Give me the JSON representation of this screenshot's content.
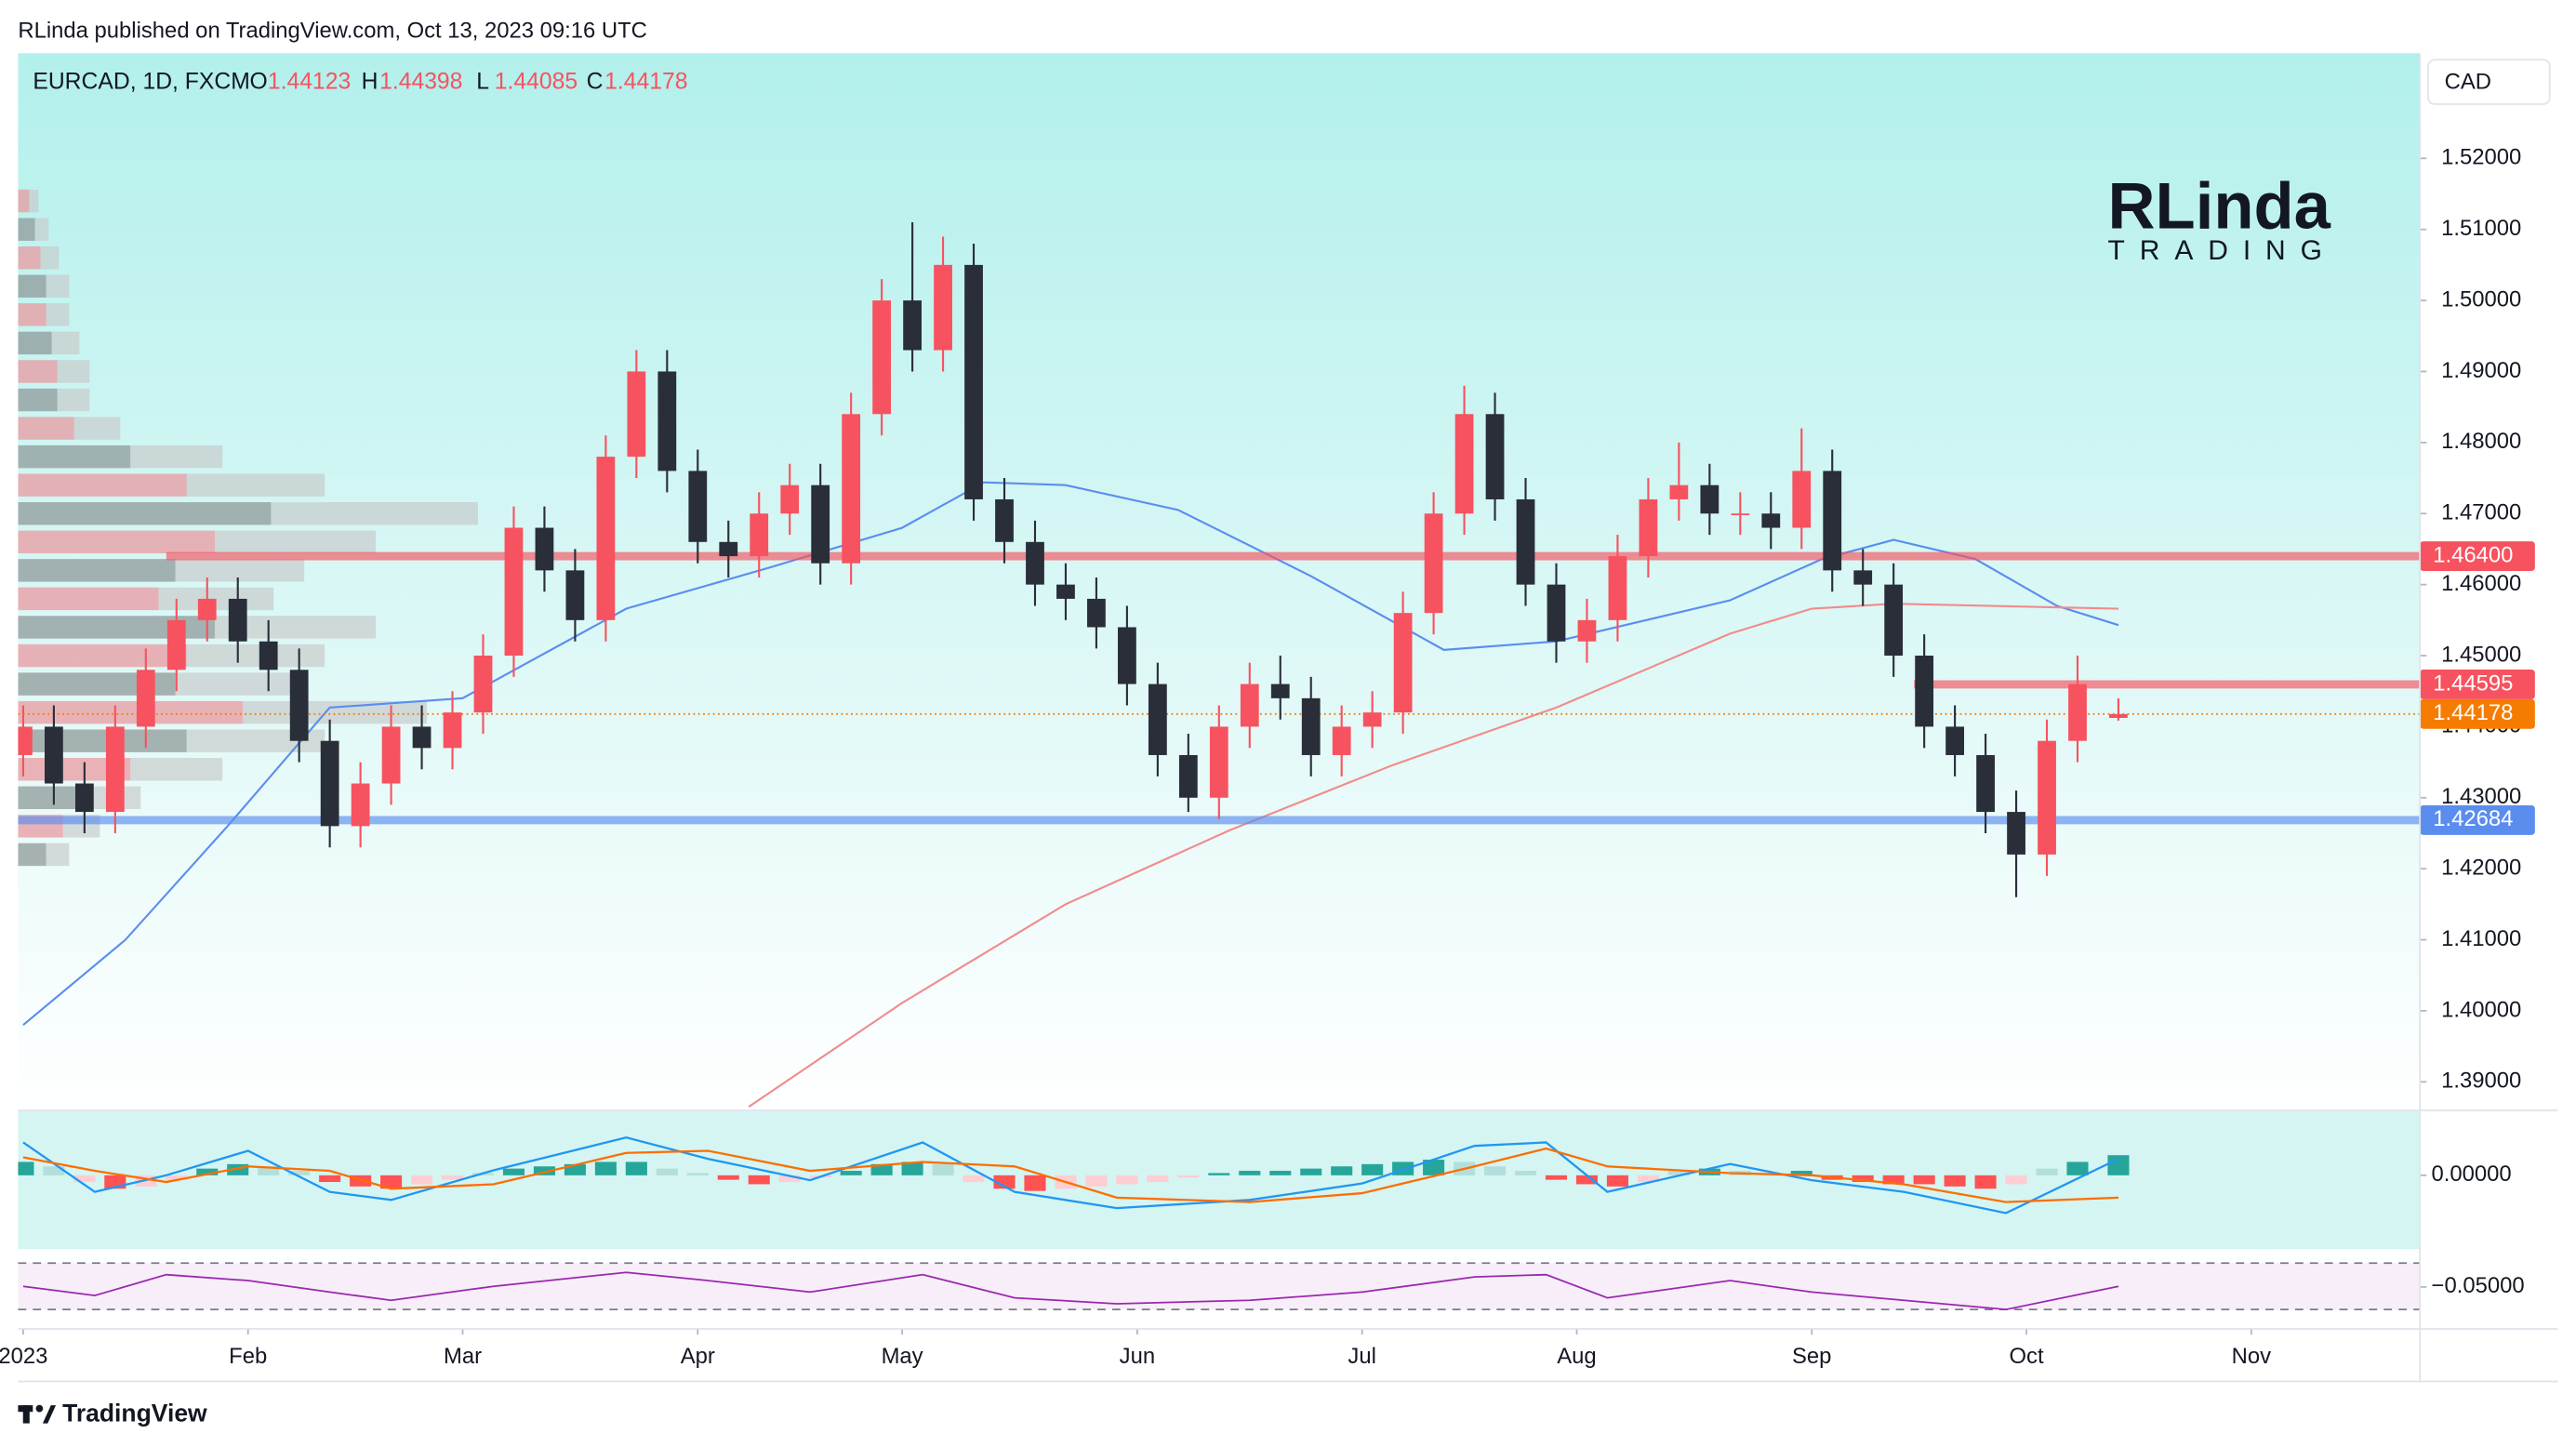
{
  "header": {
    "publisher": "RLinda published on TradingView.com, Oct 13, 2023 09:16 UTC"
  },
  "footer": {
    "brand": "TradingView"
  },
  "logo": {
    "name": "RLinda",
    "tagline": "TRADING"
  },
  "chart_data": {
    "type": "candlestick",
    "title": "EURCAD, 1D, FXCM",
    "currency": "CAD",
    "ohlc_labels": [
      "O",
      "H",
      "L",
      "C"
    ],
    "ohlc": [
      1.44123,
      1.44398,
      1.44085,
      1.44178
    ],
    "x": [
      0,
      3,
      6,
      9,
      12,
      15,
      18,
      21,
      24,
      27,
      30,
      33,
      36,
      39,
      42,
      45,
      48,
      51,
      54,
      57,
      60,
      63,
      66,
      69,
      72,
      75,
      78,
      81,
      84,
      87,
      90,
      93,
      96,
      99,
      102,
      105,
      108,
      111,
      114,
      117,
      120,
      123,
      126,
      129,
      132,
      135,
      138,
      141,
      144,
      147,
      150,
      153,
      156,
      159,
      162,
      165,
      168,
      171,
      174,
      177,
      180,
      183,
      186,
      189,
      192,
      195,
      198,
      201,
      205
    ],
    "open": [
      1.436,
      1.44,
      1.432,
      1.428,
      1.44,
      1.448,
      1.455,
      1.458,
      1.452,
      1.448,
      1.438,
      1.426,
      1.432,
      1.44,
      1.437,
      1.442,
      1.45,
      1.468,
      1.462,
      1.455,
      1.478,
      1.49,
      1.476,
      1.466,
      1.464,
      1.47,
      1.474,
      1.463,
      1.484,
      1.5,
      1.493,
      1.505,
      1.472,
      1.466,
      1.46,
      1.458,
      1.454,
      1.446,
      1.436,
      1.43,
      1.44,
      1.446,
      1.444,
      1.436,
      1.44,
      1.442,
      1.456,
      1.47,
      1.484,
      1.472,
      1.46,
      1.452,
      1.455,
      1.464,
      1.472,
      1.474,
      1.47,
      1.47,
      1.468,
      1.476,
      1.462,
      1.46,
      1.45,
      1.44,
      1.436,
      1.428,
      1.422,
      1.438,
      1.44123
    ],
    "high": [
      1.443,
      1.443,
      1.435,
      1.443,
      1.451,
      1.458,
      1.461,
      1.461,
      1.455,
      1.451,
      1.441,
      1.435,
      1.443,
      1.443,
      1.445,
      1.453,
      1.471,
      1.471,
      1.465,
      1.481,
      1.493,
      1.493,
      1.479,
      1.469,
      1.473,
      1.477,
      1.477,
      1.487,
      1.503,
      1.511,
      1.509,
      1.508,
      1.475,
      1.469,
      1.463,
      1.461,
      1.457,
      1.449,
      1.439,
      1.443,
      1.449,
      1.45,
      1.447,
      1.443,
      1.445,
      1.459,
      1.473,
      1.488,
      1.487,
      1.475,
      1.463,
      1.458,
      1.467,
      1.475,
      1.48,
      1.477,
      1.473,
      1.473,
      1.482,
      1.479,
      1.465,
      1.463,
      1.453,
      1.443,
      1.439,
      1.431,
      1.441,
      1.45,
      1.44398
    ],
    "low": [
      1.433,
      1.429,
      1.425,
      1.425,
      1.437,
      1.445,
      1.452,
      1.449,
      1.445,
      1.435,
      1.423,
      1.423,
      1.429,
      1.434,
      1.434,
      1.439,
      1.447,
      1.459,
      1.452,
      1.452,
      1.475,
      1.473,
      1.463,
      1.461,
      1.461,
      1.467,
      1.46,
      1.46,
      1.481,
      1.49,
      1.49,
      1.469,
      1.463,
      1.457,
      1.455,
      1.451,
      1.443,
      1.433,
      1.428,
      1.427,
      1.437,
      1.441,
      1.433,
      1.433,
      1.437,
      1.439,
      1.453,
      1.467,
      1.469,
      1.457,
      1.449,
      1.449,
      1.452,
      1.461,
      1.469,
      1.467,
      1.467,
      1.465,
      1.465,
      1.459,
      1.457,
      1.447,
      1.437,
      1.433,
      1.425,
      1.416,
      1.419,
      1.435,
      1.44085
    ],
    "close": [
      1.44,
      1.432,
      1.428,
      1.44,
      1.448,
      1.455,
      1.458,
      1.452,
      1.448,
      1.438,
      1.426,
      1.432,
      1.44,
      1.437,
      1.442,
      1.45,
      1.468,
      1.462,
      1.455,
      1.478,
      1.49,
      1.476,
      1.466,
      1.464,
      1.47,
      1.474,
      1.463,
      1.484,
      1.5,
      1.493,
      1.505,
      1.472,
      1.466,
      1.46,
      1.458,
      1.454,
      1.446,
      1.436,
      1.43,
      1.44,
      1.446,
      1.444,
      1.436,
      1.44,
      1.442,
      1.456,
      1.47,
      1.484,
      1.472,
      1.46,
      1.452,
      1.455,
      1.464,
      1.472,
      1.474,
      1.47,
      1.47,
      1.468,
      1.476,
      1.462,
      1.46,
      1.45,
      1.44,
      1.436,
      1.428,
      1.422,
      1.438,
      1.446,
      1.44178
    ],
    "up_color": "#f7525f",
    "down_color": "#2a2e39",
    "grid": false,
    "xlim": [
      -0.5,
      234.5
    ],
    "xticks": [
      {
        "value": 0,
        "label": "2023"
      },
      {
        "value": 22,
        "label": "Feb"
      },
      {
        "value": 43,
        "label": "Mar"
      },
      {
        "value": 66,
        "label": "Apr"
      },
      {
        "value": 86,
        "label": "May"
      },
      {
        "value": 109,
        "label": "Jun"
      },
      {
        "value": 131,
        "label": "Jul"
      },
      {
        "value": 152,
        "label": "Aug"
      },
      {
        "value": 175,
        "label": "Sep"
      },
      {
        "value": 196,
        "label": "Oct"
      },
      {
        "value": 218,
        "label": "Nov"
      }
    ],
    "ylim": [
      1.3861,
      1.5348
    ],
    "yticks": [
      {
        "value": 1.39,
        "label": "1.39000"
      },
      {
        "value": 1.4,
        "label": "1.40000"
      },
      {
        "value": 1.41,
        "label": "1.41000"
      },
      {
        "value": 1.42,
        "label": "1.42000"
      },
      {
        "value": 1.43,
        "label": "1.43000"
      },
      {
        "value": 1.44,
        "label": "1.44000"
      },
      {
        "value": 1.45,
        "label": "1.45000"
      },
      {
        "value": 1.46,
        "label": "1.46000"
      },
      {
        "value": 1.47,
        "label": "1.47000"
      },
      {
        "value": 1.48,
        "label": "1.48000"
      },
      {
        "value": 1.49,
        "label": "1.49000"
      },
      {
        "value": 1.5,
        "label": "1.50000"
      },
      {
        "value": 1.51,
        "label": "1.51000"
      },
      {
        "value": 1.52,
        "label": "1.52000"
      }
    ],
    "moving_averages": [
      {
        "color": "#5b8def",
        "x": [
          0,
          10,
          20,
          30,
          43,
          59,
          73,
          86,
          94,
          102,
          113,
          126,
          139,
          150,
          167,
          176,
          183,
          191,
          199,
          205
        ],
        "values": [
          1.398,
          1.41,
          1.426,
          1.4427,
          1.444,
          1.4566,
          1.4624,
          1.468,
          1.4744,
          1.474,
          1.4705,
          1.4612,
          1.4508,
          1.452,
          1.4578,
          1.4636,
          1.4663,
          1.4636,
          1.457,
          1.4543
        ]
      },
      {
        "color": "#f28b8b",
        "x": [
          71,
          86,
          102,
          118,
          134,
          150,
          167,
          175,
          183,
          205
        ],
        "values": [
          1.3865,
          1.4011,
          1.415,
          1.4254,
          1.4346,
          1.4427,
          1.4531,
          1.4566,
          1.4573,
          1.4566
        ]
      }
    ],
    "levels": {
      "values": [
        1.464,
        1.44595,
        1.42684
      ],
      "value_labels": [
        "1.46400",
        "1.44595",
        "1.42684"
      ],
      "colors": [
        "#f7525f",
        "#f7525f",
        "#5b8def"
      ],
      "start": [
        14,
        185,
        -0.5
      ]
    },
    "last_price_color": "#f57c00",
    "volume_profile": {
      "prices": [
        1.514,
        1.51,
        1.506,
        1.502,
        1.498,
        1.494,
        1.49,
        1.486,
        1.482,
        1.478,
        1.474,
        1.47,
        1.466,
        1.462,
        1.458,
        1.454,
        1.45,
        1.446,
        1.442,
        1.438,
        1.434,
        1.43,
        1.426,
        1.422
      ],
      "values": [
        2,
        3,
        4,
        5,
        5,
        6,
        7,
        7,
        10,
        20,
        30,
        45,
        35,
        28,
        25,
        35,
        30,
        28,
        40,
        30,
        20,
        12,
        8,
        5
      ]
    },
    "macd": {
      "ylim": [
        -0.0684,
        0.0287
      ],
      "yticks": [
        {
          "value": 0,
          "label": "0.00000"
        },
        {
          "value": -0.05,
          "label": "−0.05000"
        }
      ],
      "x": [
        0,
        7,
        14,
        22,
        30,
        36,
        46,
        59,
        67,
        77,
        88,
        97,
        107,
        120,
        131,
        142,
        149,
        155,
        167,
        175,
        184,
        194,
        205
      ],
      "macd": [
        0.0147,
        -0.0074,
        0.0,
        0.011,
        -0.0074,
        -0.011,
        0.0022,
        0.0169,
        0.0074,
        -0.0022,
        0.0147,
        -0.0074,
        -0.0147,
        -0.011,
        -0.0037,
        0.0132,
        0.0147,
        -0.0074,
        0.0051,
        -0.0022,
        -0.0074,
        -0.0169,
        0.0074
      ],
      "signal": [
        0.008,
        0.002,
        -0.003,
        0.004,
        0.002,
        -0.006,
        -0.004,
        0.01,
        0.011,
        0.002,
        0.006,
        0.004,
        -0.01,
        -0.012,
        -0.008,
        0.004,
        0.012,
        0.004,
        0.001,
        0.0,
        -0.004,
        -0.012,
        -0.01
      ],
      "macd_color": "#2196f3",
      "signal_color": "#ff6d00",
      "histogram": [
        0.006,
        0.004,
        -0.003,
        -0.006,
        -0.005,
        -0.002,
        0.003,
        0.005,
        0.004,
        0.002,
        -0.003,
        -0.005,
        -0.006,
        -0.004,
        -0.002,
        0.001,
        0.003,
        0.004,
        0.005,
        0.006,
        0.006,
        0.003,
        0.001,
        -0.002,
        -0.004,
        -0.003,
        -0.001,
        0.002,
        0.005,
        0.006,
        0.005,
        -0.003,
        -0.006,
        -0.007,
        -0.006,
        -0.005,
        -0.004,
        -0.003,
        -0.001,
        0.001,
        0.002,
        0.002,
        0.003,
        0.004,
        0.005,
        0.006,
        0.007,
        0.006,
        0.004,
        0.002,
        -0.002,
        -0.004,
        -0.005,
        -0.003,
        0.002,
        0.003,
        0.002,
        0.001,
        0.002,
        -0.002,
        -0.003,
        -0.004,
        -0.004,
        -0.005,
        -0.006,
        -0.004,
        0.003,
        0.006,
        0.009
      ]
    },
    "rsi": {
      "ylim": [
        14,
        82
      ],
      "levels": [
        70,
        30
      ],
      "color": "#9c27b0",
      "x": [
        0,
        7,
        14,
        22,
        30,
        36,
        46,
        59,
        67,
        77,
        88,
        97,
        107,
        120,
        131,
        142,
        149,
        155,
        167,
        175,
        184,
        194,
        205
      ],
      "values": [
        50,
        42,
        60,
        55,
        45,
        38,
        50,
        62,
        55,
        45,
        60,
        40,
        35,
        38,
        45,
        58,
        60,
        40,
        55,
        45,
        38,
        30,
        50
      ]
    }
  }
}
